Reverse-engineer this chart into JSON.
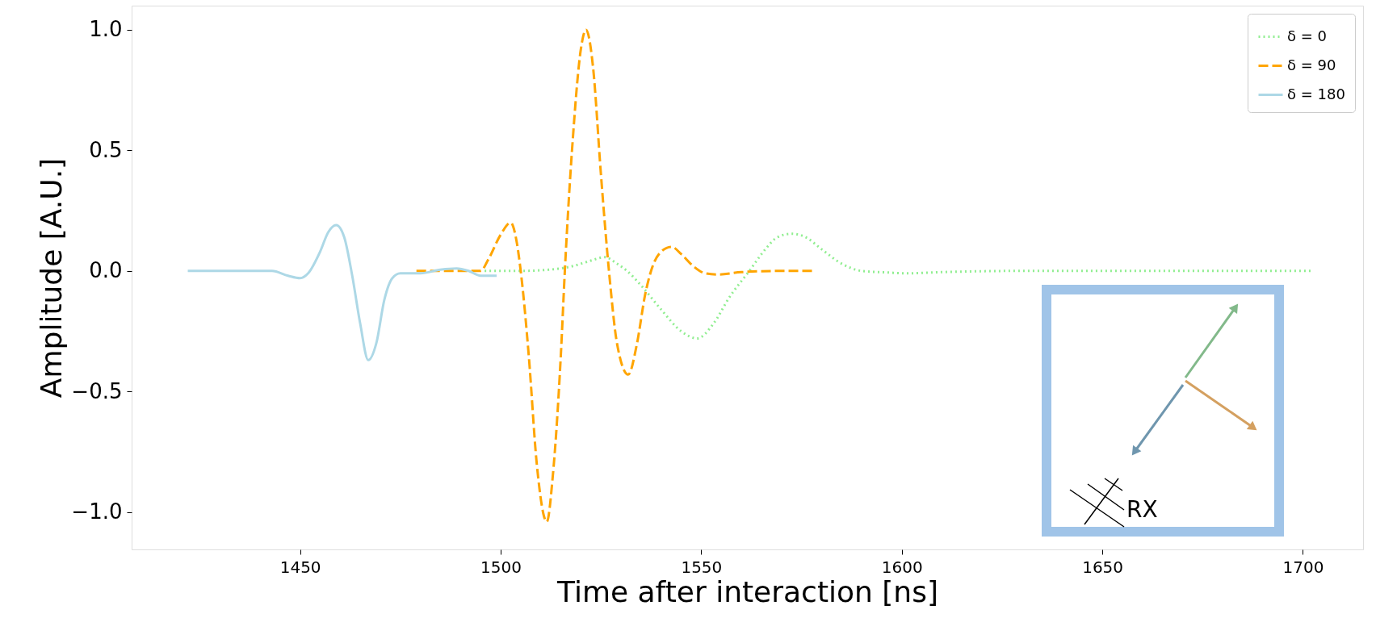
{
  "chart_data": {
    "type": "line",
    "xlabel": "Time after interaction [ns]",
    "ylabel": "Amplitude [A.U.]",
    "xlim": [
      1408,
      1715
    ],
    "ylim": [
      -1.155,
      1.1
    ],
    "xticks": [
      1450,
      1500,
      1550,
      1600,
      1650,
      1700
    ],
    "yticks": [
      {
        "value": -1.0,
        "label": "−1.0"
      },
      {
        "value": -0.5,
        "label": "−0.5"
      },
      {
        "value": 0.0,
        "label": "0.0"
      },
      {
        "value": 0.5,
        "label": "0.5"
      },
      {
        "value": 1.0,
        "label": "1.0"
      }
    ],
    "grid": false,
    "legend": "top right",
    "marker": "none",
    "annotations": [
      "RX"
    ],
    "series": [
      {
        "name": "δ = 0",
        "color": "#90ee90",
        "line_style": "dotted",
        "x": [
          1496,
          1505,
          1512,
          1518,
          1522,
          1526,
          1529,
          1531.5,
          1535,
          1540,
          1545,
          1549,
          1553,
          1557,
          1562,
          1566,
          1569,
          1572.5,
          1576,
          1580,
          1585,
          1590,
          1596,
          1601,
          1610,
          1630,
          1660,
          1702
        ],
        "values": [
          0,
          0,
          0.005,
          0.02,
          0.04,
          0.057,
          0.03,
          0,
          -0.06,
          -0.16,
          -0.25,
          -0.28,
          -0.22,
          -0.11,
          0,
          0.09,
          0.14,
          0.154,
          0.14,
          0.09,
          0.03,
          0.0,
          -0.006,
          -0.01,
          -0.005,
          0,
          0,
          0
        ]
      },
      {
        "name": "δ = 90",
        "color": "#ffa500",
        "line_style": "dashed",
        "x": [
          1479,
          1490,
          1495,
          1497,
          1500,
          1502.5,
          1504,
          1505,
          1507,
          1509,
          1511.5,
          1513,
          1515,
          1516,
          1518,
          1520,
          1521.3,
          1523,
          1525,
          1527,
          1529,
          1531.8,
          1534,
          1536,
          1537.5,
          1540,
          1542.6,
          1545,
          1548,
          1551,
          1554,
          1560,
          1570,
          1578
        ],
        "values": [
          0,
          0,
          0,
          0.05,
          0.15,
          0.2,
          0.12,
          0,
          -0.35,
          -0.8,
          -1.04,
          -0.85,
          -0.35,
          0,
          0.55,
          0.92,
          1.0,
          0.85,
          0.4,
          0,
          -0.3,
          -0.43,
          -0.3,
          -0.1,
          0,
          0.08,
          0.1,
          0.07,
          0.02,
          -0.01,
          -0.015,
          -0.005,
          0,
          0
        ]
      },
      {
        "name": "δ = 180",
        "color": "#add8e6",
        "line_style": "solid",
        "x": [
          1422,
          1435,
          1443,
          1447,
          1450,
          1452,
          1455,
          1457,
          1459,
          1461,
          1463,
          1465,
          1467,
          1469,
          1471,
          1473,
          1475,
          1480,
          1485,
          1489,
          1492,
          1495,
          1499
        ],
        "values": [
          0,
          0,
          0,
          -0.02,
          -0.03,
          -0.01,
          0.08,
          0.16,
          0.19,
          0.14,
          -0.02,
          -0.22,
          -0.37,
          -0.3,
          -0.12,
          -0.03,
          -0.01,
          -0.01,
          0.005,
          0.01,
          0.0,
          -0.02,
          -0.02
        ]
      }
    ]
  }
}
